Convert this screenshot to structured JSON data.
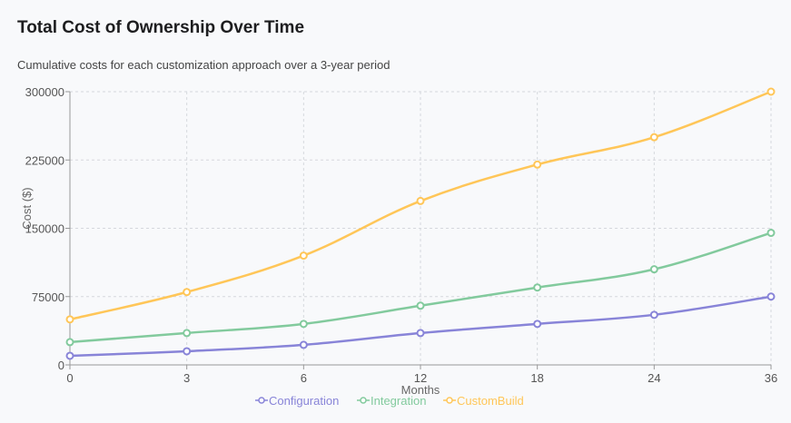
{
  "header": {
    "title": "Total Cost of Ownership Over Time",
    "subtitle": "Cumulative costs for each customization approach over a 3-year period"
  },
  "chart_data": {
    "type": "line",
    "x": [
      0,
      3,
      6,
      12,
      18,
      24,
      36
    ],
    "x_tick_labels": [
      "0",
      "3",
      "6",
      "12",
      "18",
      "24",
      "36"
    ],
    "xlabel": "Months",
    "ylabel": "Cost ($)",
    "ylim": [
      0,
      300000
    ],
    "y_ticks": [
      0,
      75000,
      150000,
      225000,
      300000
    ],
    "y_tick_labels": [
      "0",
      "75000",
      "150000",
      "225000",
      "300000"
    ],
    "grid": true,
    "legend_position": "bottom",
    "series": [
      {
        "name": "Configuration",
        "color": "#8884d8",
        "values": [
          10000,
          15000,
          22000,
          35000,
          45000,
          55000,
          75000
        ]
      },
      {
        "name": "Integration",
        "color": "#82ca9d",
        "values": [
          25000,
          35000,
          45000,
          65000,
          85000,
          105000,
          145000
        ]
      },
      {
        "name": "CustomBuild",
        "color": "#ffc658",
        "values": [
          50000,
          80000,
          120000,
          180000,
          220000,
          250000,
          300000
        ]
      }
    ]
  }
}
